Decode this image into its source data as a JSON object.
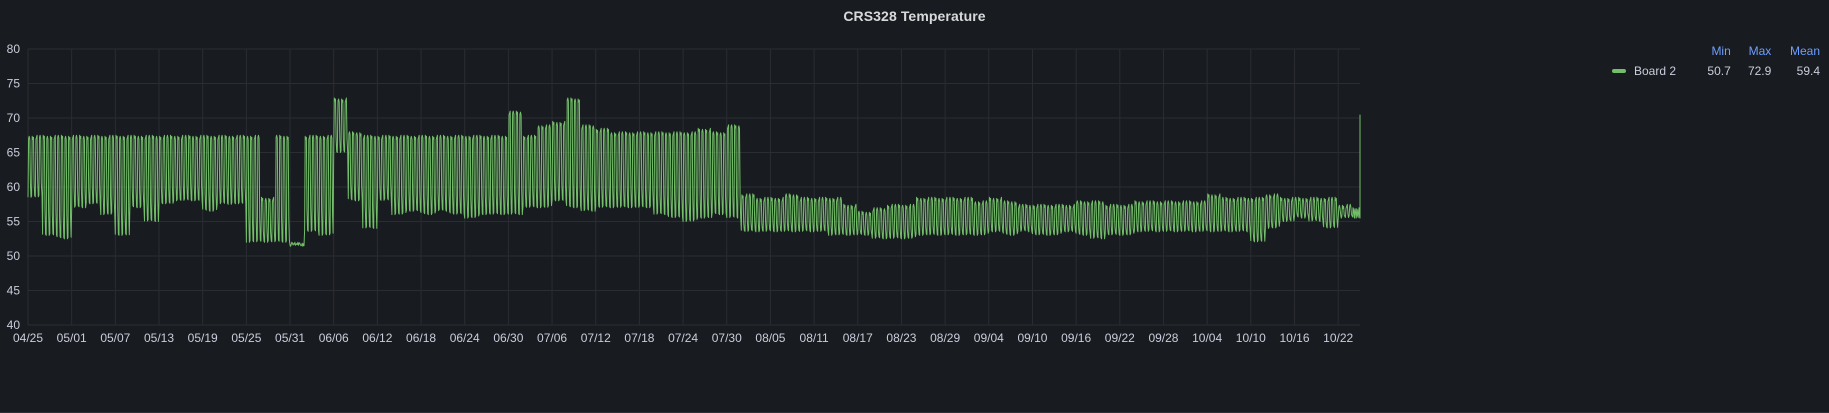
{
  "panel": {
    "title": "CRS328 Temperature"
  },
  "legend": {
    "headers": {
      "min": "Min",
      "max": "Max",
      "mean": "Mean"
    },
    "rows": [
      {
        "name": "Board 2",
        "min": "50.7",
        "max": "72.9",
        "mean": "59.4",
        "color": "#73bf69"
      }
    ]
  },
  "chart_data": {
    "type": "line",
    "title": "CRS328 Temperature",
    "xlabel": "",
    "ylabel": "",
    "ylim": [
      40,
      80
    ],
    "yticks": [
      40,
      45,
      50,
      55,
      60,
      65,
      70,
      75,
      80
    ],
    "x_start": "04/25",
    "x_end": "10/25",
    "xticks": [
      "04/25",
      "05/01",
      "05/07",
      "05/13",
      "05/19",
      "05/25",
      "05/31",
      "06/06",
      "06/12",
      "06/18",
      "06/24",
      "06/30",
      "07/06",
      "07/12",
      "07/18",
      "07/24",
      "07/30",
      "08/05",
      "08/11",
      "08/17",
      "08/23",
      "08/29",
      "09/04",
      "09/10",
      "09/16",
      "09/22",
      "09/28",
      "10/04",
      "10/10",
      "10/16",
      "10/22"
    ],
    "grid": true,
    "legend_position": "right",
    "series": [
      {
        "name": "Board 2",
        "color": "#73bf69",
        "x": [
          "04/25",
          "04/27",
          "04/29",
          "05/01",
          "05/03",
          "05/05",
          "05/07",
          "05/09",
          "05/11",
          "05/13",
          "05/15",
          "05/17",
          "05/19",
          "05/21",
          "05/23",
          "05/25",
          "05/27",
          "05/29",
          "05/31",
          "06/02",
          "06/04",
          "06/06",
          "06/08",
          "06/10",
          "06/12",
          "06/14",
          "06/16",
          "06/18",
          "06/20",
          "06/22",
          "06/24",
          "06/26",
          "06/28",
          "06/30",
          "07/02",
          "07/04",
          "07/06",
          "07/08",
          "07/10",
          "07/12",
          "07/14",
          "07/16",
          "07/18",
          "07/20",
          "07/22",
          "07/24",
          "07/26",
          "07/28",
          "07/30",
          "08/01",
          "08/03",
          "08/05",
          "08/07",
          "08/09",
          "08/11",
          "08/13",
          "08/15",
          "08/17",
          "08/19",
          "08/21",
          "08/23",
          "08/25",
          "08/27",
          "08/29",
          "08/31",
          "09/02",
          "09/04",
          "09/06",
          "09/08",
          "09/10",
          "09/12",
          "09/14",
          "09/16",
          "09/18",
          "09/20",
          "09/22",
          "09/24",
          "09/26",
          "09/28",
          "09/30",
          "10/02",
          "10/04",
          "10/06",
          "10/08",
          "10/10",
          "10/12",
          "10/14",
          "10/16",
          "10/18",
          "10/20",
          "10/22",
          "10/24",
          "10/25"
        ],
        "lows": [
          58.5,
          53,
          52.5,
          57,
          57.5,
          56,
          53,
          57,
          55,
          57.5,
          58,
          58,
          56.5,
          57.5,
          57.5,
          52,
          52,
          52,
          51.5,
          53.5,
          53,
          65,
          58,
          54,
          58,
          56,
          56.5,
          56,
          56.5,
          56,
          55.5,
          56,
          56,
          56,
          57,
          57,
          58,
          57,
          56.5,
          57,
          57,
          57,
          57,
          56,
          55.5,
          55,
          55.5,
          56,
          55.5,
          53.5,
          53.5,
          53.5,
          53.5,
          53.5,
          53.5,
          53,
          53,
          53,
          52.5,
          52.5,
          52.5,
          53,
          53,
          53,
          53,
          53,
          53.5,
          53,
          53.5,
          53,
          53,
          53.5,
          53,
          52.5,
          53,
          53,
          53.5,
          53.5,
          53.5,
          53.5,
          53.5,
          53.5,
          53.5,
          53.5,
          52,
          54,
          55,
          55.5,
          55,
          54,
          55.5,
          55.5,
          55.5
        ],
        "highs": [
          67.5,
          67.5,
          67.5,
          67.5,
          67.5,
          67.5,
          67.5,
          67.5,
          67.5,
          67.5,
          67.5,
          67.5,
          67.5,
          67.5,
          67.5,
          67.5,
          58.5,
          67.5,
          52,
          67.5,
          67.5,
          72.9,
          68,
          67.5,
          67.5,
          67.5,
          67.5,
          67.5,
          67.5,
          67.5,
          67.5,
          67.5,
          67.5,
          71,
          67.5,
          69,
          69.5,
          72.9,
          69,
          68.5,
          68,
          68,
          68,
          68,
          68,
          68,
          68.5,
          68,
          69,
          59,
          58.5,
          58.5,
          59,
          58.5,
          58.5,
          58.5,
          57.5,
          56.5,
          57,
          57.5,
          57.5,
          58.5,
          58.5,
          58.5,
          58.5,
          58,
          58.5,
          58,
          57.5,
          57.5,
          57.5,
          57.5,
          58,
          58,
          57.5,
          57.5,
          58,
          58,
          58,
          58,
          58,
          59,
          58.5,
          58.5,
          58.5,
          59,
          58.5,
          58.5,
          58.5,
          58.5,
          57.5,
          57,
          70.5
        ],
        "cycles_per_point": 4
      }
    ]
  }
}
